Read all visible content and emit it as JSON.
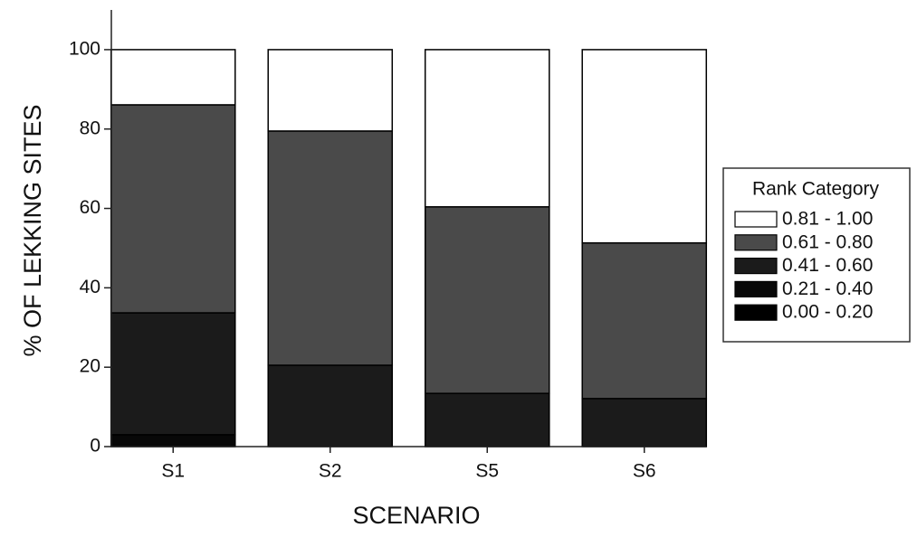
{
  "chart_data": {
    "type": "stacked_bar",
    "x_label": "SCENARIO",
    "y_label": "% OF LEKKING SITES",
    "categories": [
      "S1",
      "S2",
      "S5",
      "S6"
    ],
    "series": [
      {
        "name": "0.00 - 0.20",
        "color": "#000000",
        "values": [
          0,
          0,
          0,
          0
        ]
      },
      {
        "name": "0.21 - 0.40",
        "color": "#080808",
        "values": [
          3,
          0,
          0,
          0
        ]
      },
      {
        "name": "0.41 - 0.60",
        "color": "#1b1b1b",
        "values": [
          30.7,
          20.5,
          13.4,
          12.1
        ]
      },
      {
        "name": "0.61 - 0.80",
        "color": "#4a4a4a",
        "values": [
          52.4,
          59,
          47,
          39.2
        ]
      },
      {
        "name": "0.81 - 1.00",
        "color": "#ffffff",
        "values": [
          13.9,
          20.5,
          39.6,
          48.7
        ]
      }
    ],
    "legend_title": "Rank Category",
    "legend_position": "right",
    "ylim": [
      0,
      110
    ],
    "yticks": [
      0,
      20,
      40,
      60,
      80,
      100
    ]
  }
}
